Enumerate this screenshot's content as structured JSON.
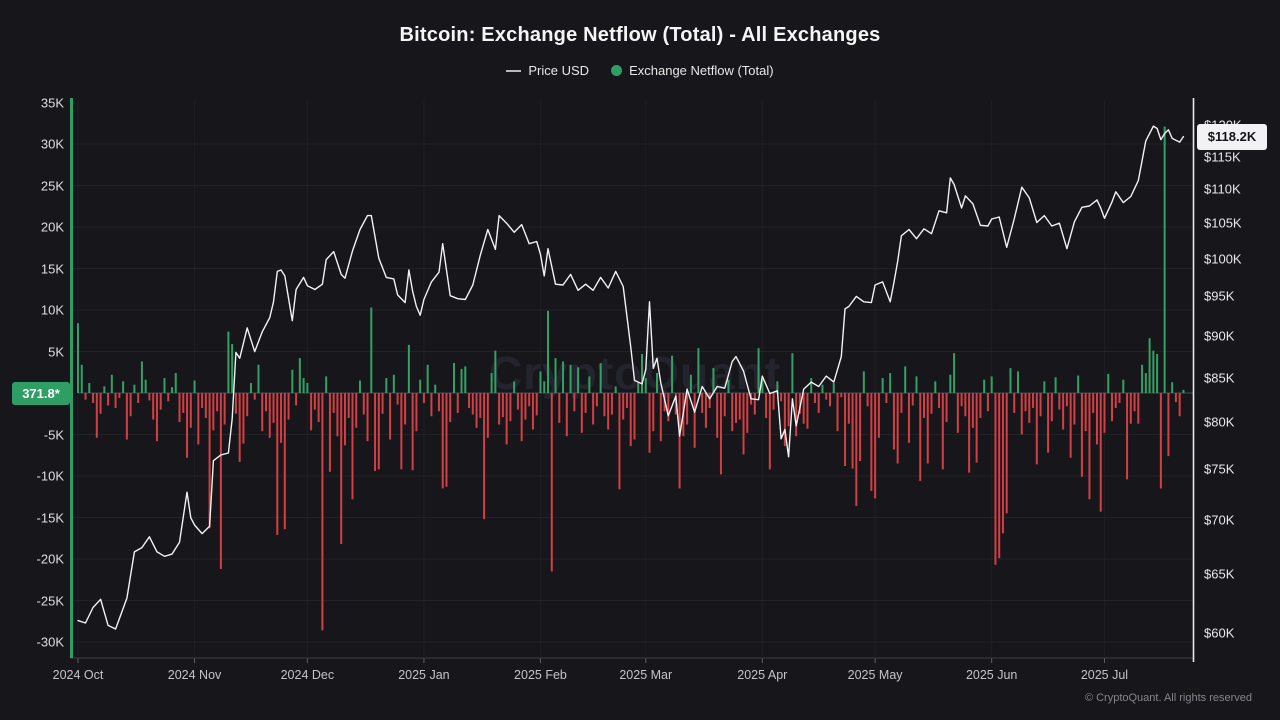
{
  "header": {
    "title": "Bitcoin: Exchange Netflow (Total) - All Exchanges",
    "legend": [
      {
        "label": "Price USD",
        "marker": "line",
        "color": "#b9b9bd"
      },
      {
        "label": "Exchange Netflow (Total)",
        "marker": "dot",
        "color": "#2f9e64"
      }
    ]
  },
  "badges": {
    "netflow_last": "371.8*",
    "price_last": "$118.2K"
  },
  "watermark": "CryptoQuant",
  "footer": "© CryptoQuant. All rights reserved",
  "colors": {
    "background": "#17171b",
    "bar_positive": "#33a065",
    "bar_negative": "#d23f44",
    "price_line": "#f2f2f2",
    "left_axis_line": "#2f9e64",
    "right_axis_line": "#e9e9ec",
    "grid": "rgba(255,255,255,0.05)",
    "zero_line": "#4a4a52"
  },
  "axes": {
    "left_items": [
      {
        "v": 35,
        "label": "35K"
      },
      {
        "v": 30,
        "label": "30K"
      },
      {
        "v": 25,
        "label": "25K"
      },
      {
        "v": 20,
        "label": "20K"
      },
      {
        "v": 15,
        "label": "15K"
      },
      {
        "v": 10,
        "label": "10K"
      },
      {
        "v": 5,
        "label": "5K"
      },
      {
        "v": -5,
        "label": "-5K"
      },
      {
        "v": -10,
        "label": "-10K"
      },
      {
        "v": -15,
        "label": "-15K"
      },
      {
        "v": -20,
        "label": "-20K"
      },
      {
        "v": -25,
        "label": "-25K"
      },
      {
        "v": -30,
        "label": "-30K"
      }
    ],
    "right_items": [
      {
        "k": 120,
        "label": "$120K"
      },
      {
        "k": 115,
        "label": "$115K"
      },
      {
        "k": 110,
        "label": "$110K"
      },
      {
        "k": 105,
        "label": "$105K"
      },
      {
        "k": 100,
        "label": "$100K"
      },
      {
        "k": 95,
        "label": "$95K"
      },
      {
        "k": 90,
        "label": "$90K"
      },
      {
        "k": 85,
        "label": "$85K"
      },
      {
        "k": 80,
        "label": "$80K"
      },
      {
        "k": 75,
        "label": "$75K"
      },
      {
        "k": 70,
        "label": "$70K"
      },
      {
        "k": 65,
        "label": "$65K"
      },
      {
        "k": 60,
        "label": "$60K"
      }
    ],
    "x_items": [
      {
        "day": 0,
        "label": "2024 Oct"
      },
      {
        "day": 31,
        "label": "2024 Nov"
      },
      {
        "day": 61,
        "label": "2024 Dec"
      },
      {
        "day": 92,
        "label": "2025 Jan"
      },
      {
        "day": 123,
        "label": "2025 Feb"
      },
      {
        "day": 151,
        "label": "2025 Mar"
      },
      {
        "day": 182,
        "label": "2025 Apr"
      },
      {
        "day": 212,
        "label": "2025 May"
      },
      {
        "day": 243,
        "label": "2025 Jun"
      },
      {
        "day": 273,
        "label": "2025 Jul"
      }
    ]
  },
  "chart_data": {
    "type": "mixed",
    "title": "Bitcoin: Exchange Netflow (Total) - All Exchanges",
    "start_date": "2024-10-01",
    "end_date": "2025-07-22",
    "left_axis": {
      "label": "Exchange Netflow",
      "unit": "K BTC",
      "min": -30,
      "max": 35,
      "step": 5
    },
    "right_axis": {
      "label": "Price USD",
      "scale": "log",
      "ticks_k": [
        120,
        115,
        110,
        105,
        100,
        95,
        90,
        85,
        80,
        75,
        70,
        65,
        60
      ]
    },
    "grid": "horizontal+month-vertical",
    "legend_position": "top-center",
    "last_values": {
      "netflow_btc": 371.8,
      "netflow_partial": true,
      "price_usd_k": 118.2
    },
    "series": [
      {
        "name": "Exchange Netflow (Total)",
        "type": "bar",
        "axis": "left",
        "unit": "K BTC per day",
        "color_positive": "#33a065",
        "color_negative": "#d23f44",
        "daily_values_k": [
          8.4,
          3.4,
          -0.8,
          1.2,
          -1.2,
          -5.4,
          -2.5,
          0.8,
          -1.5,
          2.2,
          -1.8,
          -0.6,
          1.4,
          -5.6,
          -2.8,
          1.0,
          -1.2,
          3.8,
          1.6,
          -0.9,
          -3.2,
          -5.8,
          -2.0,
          1.8,
          -1.0,
          0.7,
          2.4,
          -3.5,
          -2.4,
          -7.8,
          -4.2,
          1.5,
          -6.2,
          -1.8,
          -3.0,
          -16.3,
          -4.5,
          -2.2,
          -21.2,
          -3.8,
          7.4,
          5.9,
          -2.5,
          -8.3,
          -6.1,
          -2.8,
          1.2,
          -0.8,
          3.4,
          -4.6,
          -2.2,
          -5.4,
          -3.6,
          -17.1,
          -6.0,
          -16.4,
          -3.2,
          2.8,
          -1.5,
          4.2,
          1.8,
          1.2,
          -4.5,
          -2.0,
          -3.5,
          -28.6,
          2.0,
          -9.5,
          -2.4,
          -5.2,
          -18.2,
          -6.3,
          -3.0,
          -12.8,
          -4.2,
          1.5,
          -2.6,
          -5.8,
          10.3,
          -9.4,
          -9.2,
          -2.5,
          1.8,
          -5.6,
          2.2,
          -1.4,
          -9.2,
          -3.8,
          5.8,
          -9.3,
          -4.6,
          1.6,
          -1.2,
          3.4,
          -2.8,
          1.0,
          -2.2,
          -11.5,
          -11.3,
          -3.5,
          3.6,
          -2.4,
          2.9,
          3.2,
          -1.8,
          -2.6,
          -4.2,
          -3.0,
          -15.2,
          -5.4,
          2.4,
          5.1,
          -3.8,
          -2.9,
          -6.2,
          -3.4,
          1.4,
          -2.0,
          -5.8,
          -3.2,
          -1.6,
          -4.4,
          -2.7,
          2.6,
          1.4,
          9.9,
          -21.5,
          4.2,
          -3.6,
          3.8,
          -5.2,
          3.4,
          -2.2,
          3.1,
          -4.8,
          -2.4,
          2.0,
          -3.8,
          -1.6,
          3.6,
          -2.8,
          -4.4,
          -2.6,
          0.8,
          -11.6,
          -3.2,
          -1.8,
          -6.4,
          -5.6,
          1.2,
          4.7,
          1.8,
          -7.2,
          -4.6,
          2.4,
          -5.8,
          -2.2,
          -3.4,
          4.5,
          -2.6,
          -11.5,
          -5.2,
          -3.8,
          2.2,
          -6.6,
          5.4,
          -2.4,
          -4.2,
          -1.8,
          3.0,
          -5.4,
          -9.8,
          -2.8,
          1.6,
          -4.6,
          -3.6,
          -3.2,
          -7.4,
          -4.8,
          -1.4,
          -2.6,
          5.4,
          1.6,
          -3.0,
          -9.2,
          -2.0,
          1.4,
          -1.0,
          -6.4,
          -4.0,
          4.8,
          -5.2,
          -2.5,
          -3.7,
          -4.3,
          1.8,
          -1.2,
          -2.4,
          1.0,
          -0.8,
          -1.6,
          1.2,
          -4.6,
          -0.5,
          -8.8,
          -3.7,
          -9.1,
          -13.6,
          -8.2,
          2.6,
          -1.6,
          -11.8,
          -12.7,
          -5.4,
          1.8,
          -1.2,
          2.4,
          -6.8,
          -8.5,
          -2.4,
          3.2,
          -6.0,
          -1.5,
          2.0,
          -10.6,
          -3.0,
          -8.5,
          -2.5,
          1.4,
          -1.8,
          -9.2,
          -3.5,
          2.2,
          4.8,
          -4.8,
          -1.6,
          -2.8,
          -9.6,
          -4.2,
          -8.4,
          -3.0,
          1.6,
          -2.2,
          2.0,
          -20.7,
          -19.9,
          -16.9,
          -14.5,
          3.0,
          -2.4,
          2.6,
          -5.0,
          -2.2,
          -3.6,
          -1.8,
          -8.6,
          -2.8,
          1.4,
          -7.2,
          -3.4,
          1.9,
          -2.0,
          -4.4,
          -1.6,
          -7.8,
          -3.8,
          2.1,
          -10.1,
          -4.6,
          -12.8,
          -2.4,
          -6.2,
          -14.3,
          -4.8,
          2.3,
          -3.4,
          -1.8,
          -1.2,
          1.6,
          -10.4,
          -3.7,
          -2.2,
          -3.7,
          3.4,
          2.4,
          6.6,
          5.1,
          4.7,
          -11.5,
          32.1,
          -7.6,
          1.3,
          -1.1,
          -2.8,
          0.37
        ]
      },
      {
        "name": "Price USD",
        "type": "line",
        "axis": "right",
        "unit": "K USD",
        "scale": "log",
        "color": "#f2f2f2",
        "points_day_price_k": [
          [
            0,
            61.0
          ],
          [
            2,
            60.8
          ],
          [
            4,
            62.1
          ],
          [
            6,
            62.8
          ],
          [
            8,
            60.6
          ],
          [
            10,
            60.3
          ],
          [
            13,
            62.9
          ],
          [
            15,
            67.0
          ],
          [
            17,
            67.4
          ],
          [
            19,
            68.4
          ],
          [
            21,
            67.0
          ],
          [
            23,
            66.6
          ],
          [
            25,
            66.8
          ],
          [
            27,
            67.9
          ],
          [
            29,
            72.7
          ],
          [
            30,
            70.2
          ],
          [
            31,
            69.5
          ],
          [
            33,
            68.7
          ],
          [
            35,
            69.4
          ],
          [
            36,
            75.9
          ],
          [
            38,
            76.5
          ],
          [
            40,
            76.7
          ],
          [
            41,
            80.4
          ],
          [
            42,
            88.0
          ],
          [
            43,
            87.3
          ],
          [
            45,
            91.0
          ],
          [
            47,
            88.1
          ],
          [
            49,
            90.5
          ],
          [
            51,
            92.3
          ],
          [
            52,
            94.3
          ],
          [
            53,
            98.3
          ],
          [
            54,
            98.5
          ],
          [
            55,
            97.7
          ],
          [
            57,
            91.9
          ],
          [
            58,
            95.9
          ],
          [
            60,
            97.5
          ],
          [
            61,
            96.4
          ],
          [
            63,
            95.9
          ],
          [
            65,
            96.6
          ],
          [
            66,
            99.9
          ],
          [
            68,
            101.0
          ],
          [
            70,
            97.9
          ],
          [
            71,
            97.4
          ],
          [
            73,
            101.1
          ],
          [
            75,
            104.1
          ],
          [
            77,
            106.1
          ],
          [
            78,
            106.1
          ],
          [
            80,
            100.1
          ],
          [
            82,
            97.5
          ],
          [
            84,
            97.3
          ],
          [
            85,
            95.2
          ],
          [
            87,
            94.2
          ],
          [
            88,
            98.5
          ],
          [
            89,
            95.7
          ],
          [
            90,
            93.7
          ],
          [
            91,
            92.6
          ],
          [
            92,
            94.6
          ],
          [
            94,
            96.9
          ],
          [
            96,
            98.2
          ],
          [
            97,
            102.1
          ],
          [
            99,
            95.1
          ],
          [
            101,
            94.7
          ],
          [
            103,
            94.6
          ],
          [
            105,
            96.5
          ],
          [
            107,
            100.5
          ],
          [
            109,
            104.1
          ],
          [
            111,
            101.3
          ],
          [
            112,
            106.1
          ],
          [
            114,
            105.0
          ],
          [
            116,
            103.7
          ],
          [
            118,
            104.8
          ],
          [
            120,
            102.1
          ],
          [
            122,
            102.4
          ],
          [
            123,
            100.6
          ],
          [
            124,
            97.7
          ],
          [
            125,
            101.4
          ],
          [
            127,
            96.6
          ],
          [
            129,
            96.5
          ],
          [
            131,
            97.9
          ],
          [
            133,
            95.8
          ],
          [
            135,
            96.6
          ],
          [
            137,
            95.8
          ],
          [
            139,
            97.5
          ],
          [
            141,
            96.1
          ],
          [
            143,
            98.3
          ],
          [
            145,
            96.3
          ],
          [
            147,
            88.7
          ],
          [
            148,
            84.7
          ],
          [
            150,
            84.3
          ],
          [
            151,
            86.0
          ],
          [
            152,
            94.3
          ],
          [
            153,
            86.1
          ],
          [
            154,
            87.3
          ],
          [
            155,
            84.4
          ],
          [
            157,
            80.7
          ],
          [
            159,
            82.9
          ],
          [
            160,
            78.5
          ],
          [
            162,
            83.7
          ],
          [
            164,
            81.1
          ],
          [
            166,
            84.0
          ],
          [
            168,
            82.6
          ],
          [
            170,
            84.0
          ],
          [
            172,
            83.8
          ],
          [
            174,
            86.9
          ],
          [
            175,
            87.5
          ],
          [
            177,
            85.8
          ],
          [
            179,
            82.6
          ],
          [
            181,
            82.5
          ],
          [
            182,
            85.2
          ],
          [
            184,
            83.2
          ],
          [
            186,
            83.5
          ],
          [
            187,
            78.2
          ],
          [
            188,
            79.2
          ],
          [
            189,
            76.3
          ],
          [
            190,
            82.6
          ],
          [
            191,
            79.6
          ],
          [
            193,
            83.7
          ],
          [
            195,
            84.5
          ],
          [
            197,
            84.0
          ],
          [
            199,
            85.2
          ],
          [
            201,
            84.5
          ],
          [
            203,
            87.5
          ],
          [
            204,
            93.4
          ],
          [
            205,
            93.7
          ],
          [
            207,
            95.0
          ],
          [
            209,
            94.3
          ],
          [
            211,
            94.2
          ],
          [
            212,
            96.5
          ],
          [
            214,
            96.9
          ],
          [
            216,
            94.3
          ],
          [
            217,
            96.8
          ],
          [
            218,
            99.7
          ],
          [
            219,
            103.2
          ],
          [
            221,
            104.1
          ],
          [
            223,
            102.8
          ],
          [
            225,
            104.2
          ],
          [
            227,
            103.5
          ],
          [
            229,
            106.8
          ],
          [
            231,
            106.5
          ],
          [
            232,
            111.7
          ],
          [
            233,
            110.7
          ],
          [
            235,
            107.2
          ],
          [
            236,
            109.0
          ],
          [
            238,
            107.8
          ],
          [
            240,
            104.7
          ],
          [
            242,
            104.6
          ],
          [
            243,
            105.6
          ],
          [
            245,
            105.9
          ],
          [
            247,
            101.6
          ],
          [
            249,
            105.6
          ],
          [
            251,
            110.3
          ],
          [
            253,
            108.7
          ],
          [
            255,
            105.1
          ],
          [
            257,
            106.1
          ],
          [
            259,
            104.6
          ],
          [
            261,
            105.0
          ],
          [
            263,
            101.4
          ],
          [
            265,
            105.2
          ],
          [
            267,
            107.3
          ],
          [
            269,
            107.5
          ],
          [
            271,
            108.4
          ],
          [
            272,
            107.2
          ],
          [
            273,
            105.7
          ],
          [
            275,
            108.1
          ],
          [
            276,
            109.6
          ],
          [
            278,
            108.0
          ],
          [
            280,
            108.9
          ],
          [
            282,
            111.3
          ],
          [
            284,
            117.5
          ],
          [
            286,
            119.9
          ],
          [
            287,
            119.5
          ],
          [
            288,
            117.7
          ],
          [
            289,
            118.7
          ],
          [
            290,
            119.3
          ],
          [
            291,
            117.9
          ],
          [
            292,
            117.6
          ],
          [
            293,
            117.3
          ],
          [
            294,
            118.2
          ]
        ]
      }
    ]
  }
}
